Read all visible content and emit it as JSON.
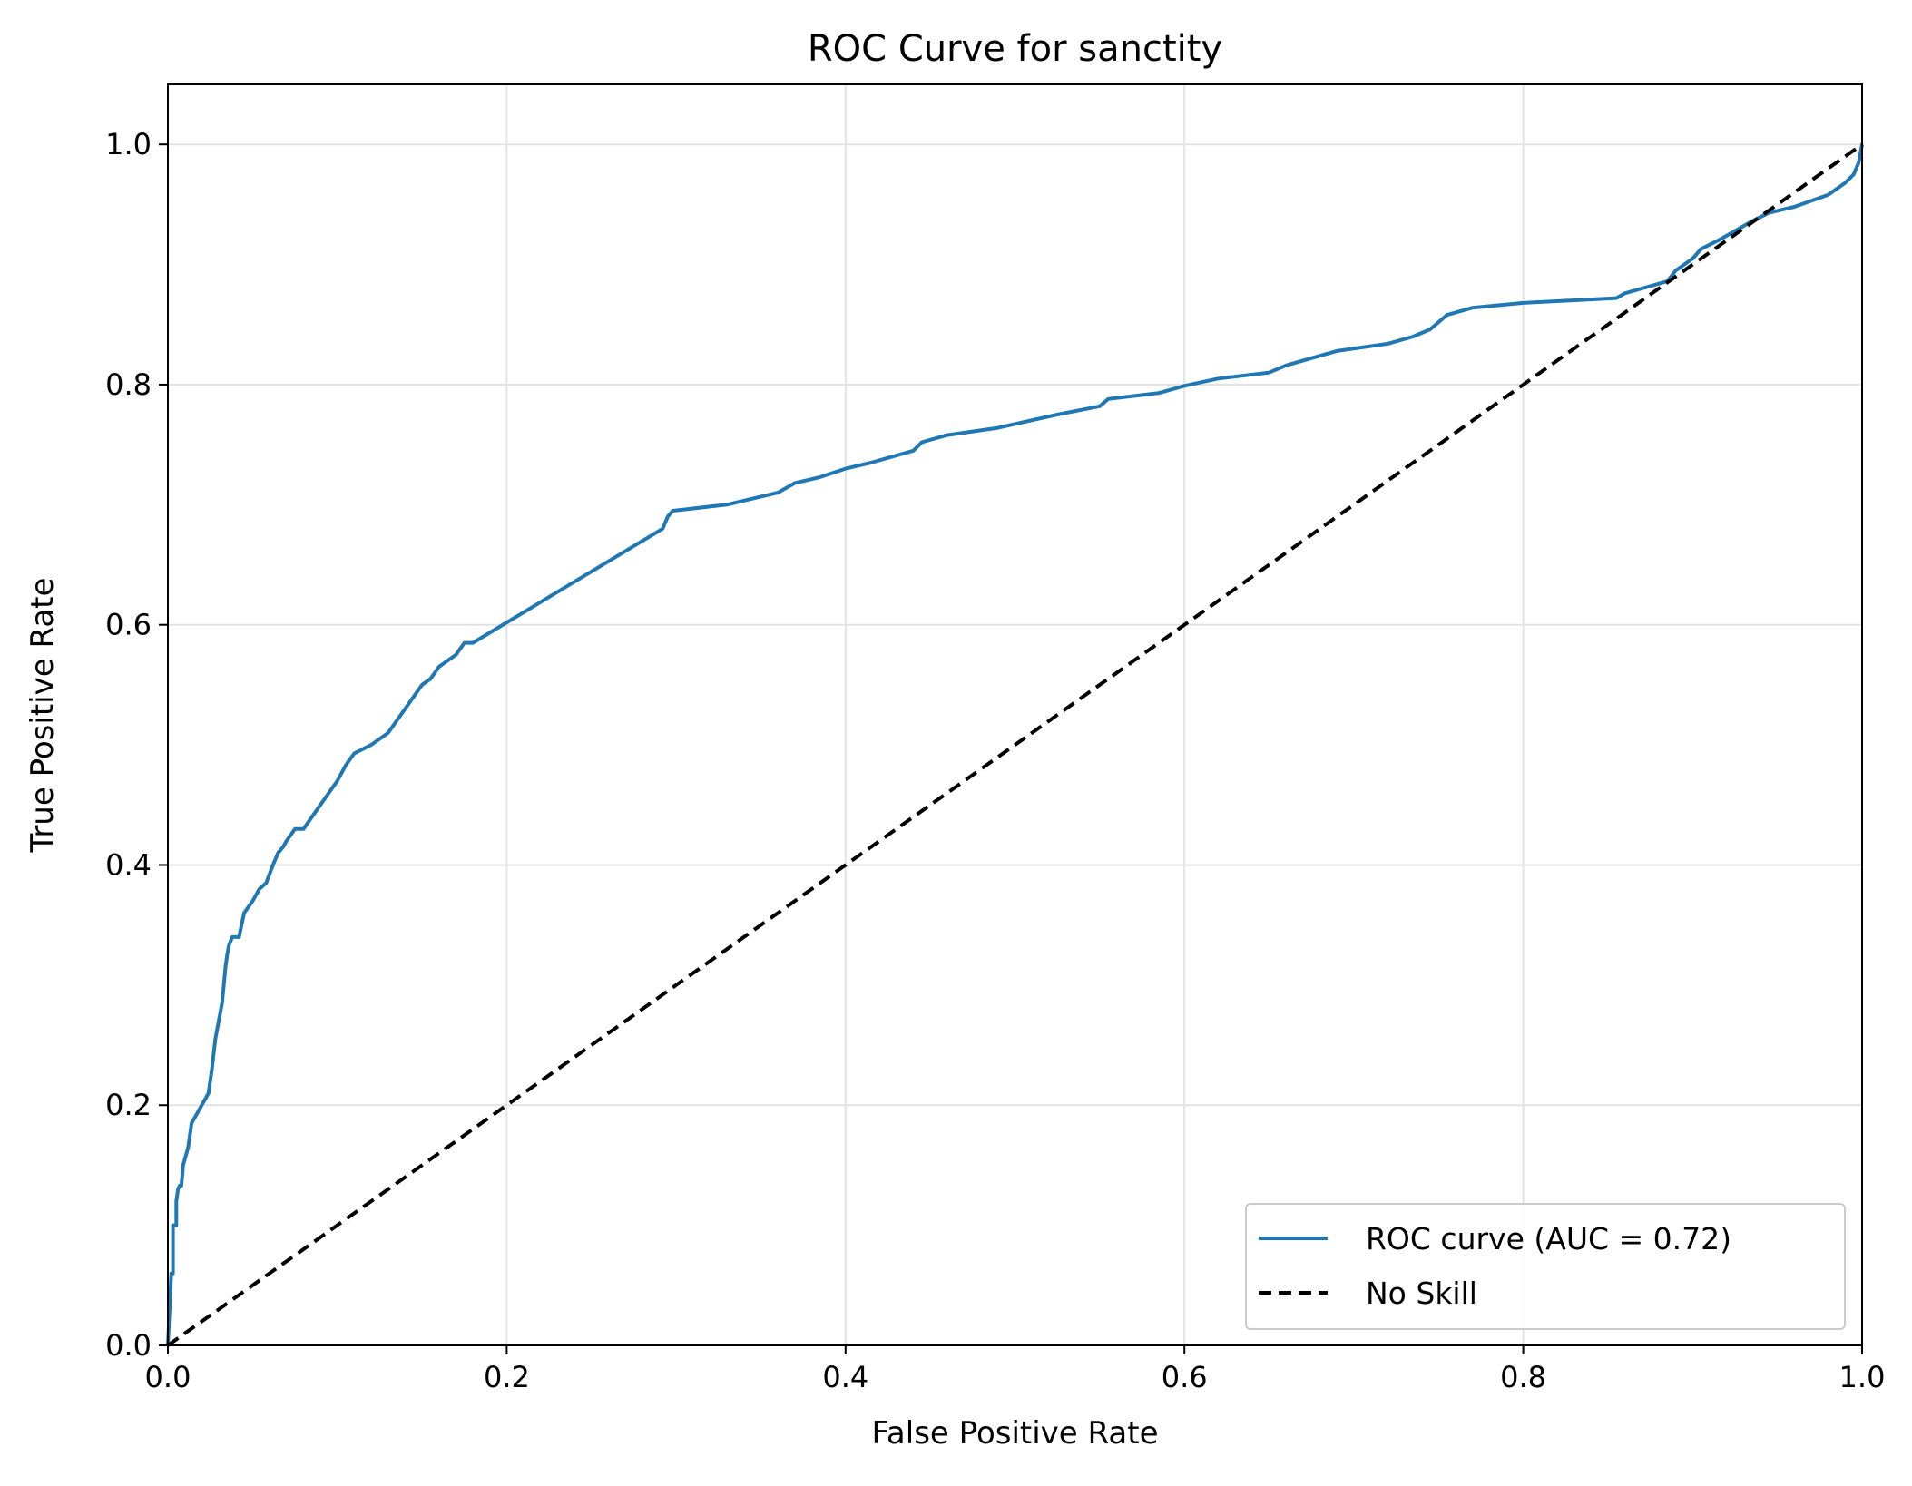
{
  "chart_data": {
    "type": "line",
    "title": "ROC Curve for sanctity",
    "xlabel": "False Positive Rate",
    "ylabel": "True Positive Rate",
    "xlim": [
      0.0,
      1.0
    ],
    "ylim": [
      0.0,
      1.05
    ],
    "x_ticks": [
      "0.0",
      "0.2",
      "0.4",
      "0.6",
      "0.8",
      "1.0"
    ],
    "y_ticks": [
      "0.0",
      "0.2",
      "0.4",
      "0.6",
      "0.8",
      "1.0"
    ],
    "grid": true,
    "legend_position": "lower-right",
    "series": [
      {
        "name": "ROC curve (AUC = 0.72)",
        "color": "#1f77b4",
        "style": "solid",
        "x": [
          0.0,
          0.001,
          0.002,
          0.003,
          0.003,
          0.005,
          0.005,
          0.006,
          0.007,
          0.008,
          0.009,
          0.012,
          0.013,
          0.014,
          0.016,
          0.018,
          0.02,
          0.022,
          0.024,
          0.026,
          0.028,
          0.03,
          0.032,
          0.033,
          0.034,
          0.035,
          0.036,
          0.038,
          0.039,
          0.04,
          0.042,
          0.045,
          0.05,
          0.052,
          0.054,
          0.058,
          0.062,
          0.065,
          0.068,
          0.07,
          0.075,
          0.08,
          0.09,
          0.095,
          0.1,
          0.105,
          0.11,
          0.12,
          0.13,
          0.135,
          0.14,
          0.145,
          0.15,
          0.155,
          0.16,
          0.17,
          0.175,
          0.18,
          0.292,
          0.295,
          0.298,
          0.33,
          0.345,
          0.36,
          0.37,
          0.385,
          0.4,
          0.415,
          0.44,
          0.445,
          0.46,
          0.49,
          0.525,
          0.55,
          0.555,
          0.585,
          0.6,
          0.62,
          0.65,
          0.66,
          0.675,
          0.69,
          0.72,
          0.735,
          0.745,
          0.75,
          0.755,
          0.77,
          0.8,
          0.855,
          0.86,
          0.87,
          0.885,
          0.89,
          0.9,
          0.905,
          0.915,
          0.925,
          0.935,
          0.945,
          0.96,
          0.97,
          0.98,
          0.99,
          0.995,
          0.998,
          1.0
        ],
        "y": [
          0.0,
          0.03,
          0.06,
          0.06,
          0.1,
          0.1,
          0.12,
          0.13,
          0.133,
          0.133,
          0.15,
          0.165,
          0.175,
          0.185,
          0.19,
          0.195,
          0.2,
          0.205,
          0.21,
          0.23,
          0.255,
          0.27,
          0.285,
          0.3,
          0.315,
          0.325,
          0.333,
          0.34,
          0.34,
          0.34,
          0.34,
          0.36,
          0.37,
          0.375,
          0.38,
          0.385,
          0.4,
          0.41,
          0.415,
          0.42,
          0.43,
          0.43,
          0.45,
          0.46,
          0.47,
          0.483,
          0.493,
          0.5,
          0.51,
          0.52,
          0.53,
          0.54,
          0.55,
          0.555,
          0.565,
          0.575,
          0.585,
          0.585,
          0.68,
          0.69,
          0.695,
          0.7,
          0.705,
          0.71,
          0.718,
          0.723,
          0.73,
          0.735,
          0.745,
          0.752,
          0.758,
          0.764,
          0.775,
          0.782,
          0.788,
          0.793,
          0.799,
          0.805,
          0.81,
          0.816,
          0.822,
          0.828,
          0.834,
          0.84,
          0.846,
          0.852,
          0.858,
          0.864,
          0.868,
          0.872,
          0.876,
          0.88,
          0.886,
          0.895,
          0.905,
          0.913,
          0.92,
          0.928,
          0.936,
          0.943,
          0.948,
          0.953,
          0.958,
          0.968,
          0.975,
          0.985,
          1.0
        ]
      },
      {
        "name": "No Skill",
        "color": "#000000",
        "style": "dashed",
        "x": [
          0.0,
          1.0
        ],
        "y": [
          0.0,
          1.0
        ]
      }
    ]
  }
}
